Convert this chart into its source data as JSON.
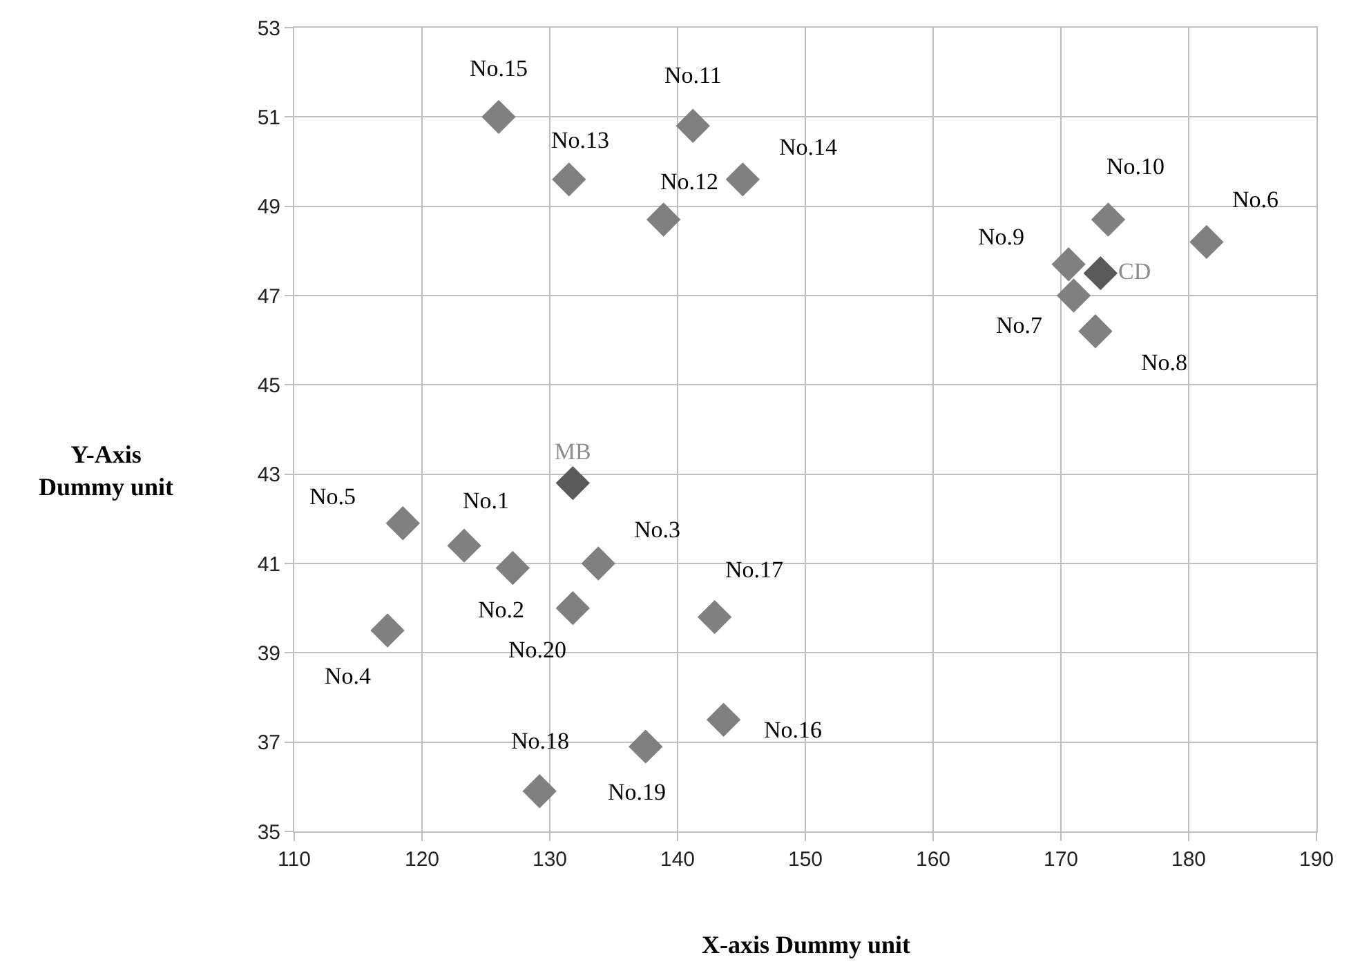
{
  "chart_data": {
    "type": "scatter",
    "xlabel": "X-axis Dummy unit",
    "ylabel": "Y-Axis\nDummy unit",
    "xlim": [
      110,
      190
    ],
    "xticks": [
      110,
      120,
      130,
      140,
      150,
      160,
      170,
      180,
      190
    ],
    "ylim": [
      35,
      53
    ],
    "yticks": [
      35,
      37,
      39,
      41,
      43,
      45,
      47,
      49,
      51,
      53
    ],
    "grid": true,
    "legend": false,
    "marker": "diamond",
    "series": [
      {
        "color": "#808080",
        "x": [
          123.3,
          127.1,
          133.8,
          117.3,
          118.5,
          181.4,
          171.0,
          172.7,
          170.6,
          173.7,
          141.2,
          138.9,
          131.5,
          145.1,
          126.0,
          143.6,
          142.9,
          129.2,
          137.5,
          131.8
        ],
        "values": [
          41.4,
          40.9,
          41.0,
          39.5,
          41.9,
          48.2,
          47.0,
          46.2,
          47.7,
          48.7,
          50.8,
          48.7,
          49.6,
          49.6,
          51.0,
          37.5,
          39.8,
          35.9,
          36.9,
          40.0
        ]
      },
      {
        "name": "MB",
        "color": "#595959",
        "x": [
          131.8
        ],
        "values": [
          42.8
        ]
      },
      {
        "name": "CD",
        "color": "#595959",
        "x": [
          173.1
        ],
        "values": [
          47.5
        ]
      }
    ],
    "annotations": [
      {
        "text": "No.1",
        "x": 123.3,
        "y": 41.4
      },
      {
        "text": "No.2",
        "x": 127.1,
        "y": 40.9
      },
      {
        "text": "No.3",
        "x": 133.8,
        "y": 41.0
      },
      {
        "text": "No.4",
        "x": 117.3,
        "y": 39.5
      },
      {
        "text": "No.5",
        "x": 118.5,
        "y": 41.9
      },
      {
        "text": "No.6",
        "x": 181.4,
        "y": 48.2
      },
      {
        "text": "No.7",
        "x": 171.0,
        "y": 47.0
      },
      {
        "text": "No.8",
        "x": 172.7,
        "y": 46.2
      },
      {
        "text": "No.9",
        "x": 170.6,
        "y": 47.7
      },
      {
        "text": "No.10",
        "x": 173.7,
        "y": 48.7
      },
      {
        "text": "No.11",
        "x": 141.2,
        "y": 50.8
      },
      {
        "text": "No.12",
        "x": 138.9,
        "y": 48.7
      },
      {
        "text": "No.13",
        "x": 131.5,
        "y": 49.6
      },
      {
        "text": "No.14",
        "x": 145.1,
        "y": 49.6
      },
      {
        "text": "No.15",
        "x": 126.0,
        "y": 51.0
      },
      {
        "text": "No.16",
        "x": 143.6,
        "y": 37.5
      },
      {
        "text": "No.17",
        "x": 142.9,
        "y": 39.8
      },
      {
        "text": "No.18",
        "x": 129.2,
        "y": 35.9
      },
      {
        "text": "No.19",
        "x": 137.5,
        "y": 36.9
      },
      {
        "text": "No.20",
        "x": 131.8,
        "y": 40.0
      }
    ]
  }
}
